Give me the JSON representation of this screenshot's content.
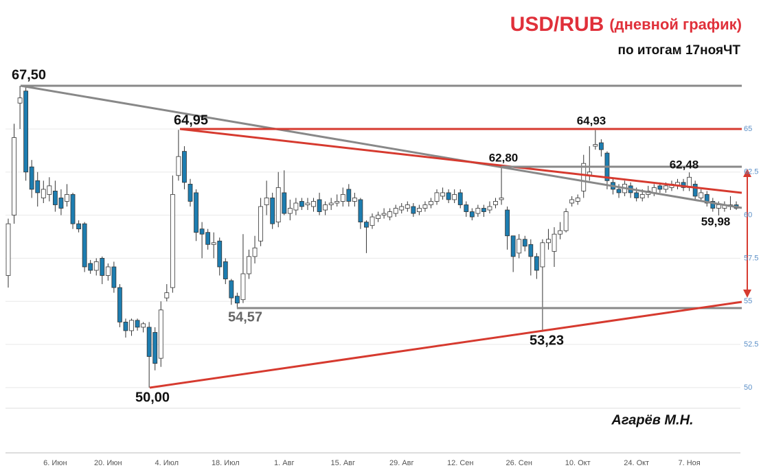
{
  "chart_data": {
    "type": "candlestick",
    "title": "USD/RUB",
    "title_suffix": "(дневной график)",
    "subtitle": "по итогам 17нояЧТ",
    "author": "Агарёв М.Н.",
    "categories": [
      null,
      null,
      null,
      null,
      null,
      null,
      null,
      null,
      "6. Июн",
      null,
      null,
      null,
      null,
      null,
      null,
      null,
      null,
      "20. Июн",
      null,
      null,
      null,
      null,
      null,
      null,
      null,
      null,
      null,
      "4. Июл",
      null,
      null,
      null,
      null,
      null,
      null,
      null,
      null,
      null,
      "18. Июл",
      null,
      null,
      null,
      null,
      null,
      null,
      null,
      null,
      null,
      "1. Авг",
      null,
      null,
      null,
      null,
      null,
      null,
      null,
      null,
      null,
      "15. Авг",
      null,
      null,
      null,
      null,
      null,
      null,
      null,
      null,
      null,
      "29. Авг",
      null,
      null,
      null,
      null,
      null,
      null,
      null,
      null,
      null,
      "12. Сен",
      null,
      null,
      null,
      null,
      null,
      null,
      null,
      null,
      null,
      "26. Сен",
      null,
      null,
      null,
      null,
      null,
      null,
      null,
      null,
      null,
      "10. Окт",
      null,
      null,
      null,
      null,
      null,
      null,
      null,
      null,
      null,
      "24. Окт",
      null,
      null,
      null,
      null,
      null,
      null,
      null,
      null,
      "7. Ноя",
      null,
      null,
      null,
      null,
      null,
      null,
      null,
      null
    ],
    "open": [
      56.5,
      60,
      66.5,
      67.2,
      62.8,
      62,
      61,
      61.2,
      61.4,
      61,
      60.8,
      61.2,
      59.5,
      59.5,
      57.2,
      56.8,
      57.5,
      56.5,
      57,
      55.8,
      53.8,
      53.3,
      53.9,
      53.5,
      53.5,
      53.2,
      51.7,
      55.2,
      55.8,
      62.3,
      63.7,
      61.8,
      61.3,
      59.2,
      59,
      58.3,
      58.5,
      57.3,
      56.2,
      55.3,
      55.1,
      56.6,
      57.6,
      58.5,
      60.6,
      61,
      59.6,
      61.3,
      60.1,
      60.3,
      60.8,
      60.6,
      60.5,
      60.9,
      60.3,
      60.6,
      60.7,
      60.8,
      61.5,
      60.8,
      60.9,
      59.6,
      59.4,
      59.8,
      60,
      59.9,
      60.1,
      60.3,
      60.4,
      60.5,
      60.2,
      60.4,
      60.6,
      60.8,
      61.1,
      61.3,
      60.9,
      61.3,
      60.6,
      60.2,
      60.1,
      60.4,
      60.3,
      60.6,
      60.9,
      60.3,
      58.8,
      57.8,
      58.6,
      58.3,
      57.6,
      57,
      58.4,
      57.9,
      58.9,
      59.1,
      60.7,
      60.8,
      61.4,
      62.3,
      64,
      64.2,
      63.6,
      61.9,
      61.5,
      61.3,
      61.7,
      61.3,
      61,
      61.2,
      61.3,
      61.7,
      61.5,
      61.6,
      61.7,
      61.9,
      61.6,
      61.8,
      61,
      61.2,
      60.8,
      60.4,
      60.4,
      60.5,
      60.6
    ],
    "high": [
      59.8,
      65.3,
      67.5,
      67.5,
      63.2,
      62.5,
      62,
      62.2,
      62,
      61.5,
      61.8,
      61.3,
      59.7,
      59.6,
      57.4,
      57.5,
      57.6,
      57.2,
      57.3,
      56,
      54,
      54,
      54,
      53.8,
      53.8,
      53.5,
      55,
      56,
      62.3,
      64.95,
      64,
      62.1,
      61.5,
      59.6,
      59.2,
      59,
      58.7,
      57.5,
      56.3,
      55.5,
      58.9,
      58,
      58.8,
      61,
      62,
      61.3,
      62.5,
      62.6,
      60.9,
      61,
      61,
      61,
      61,
      61.3,
      60.8,
      61,
      61.2,
      61.6,
      61.8,
      61.3,
      61,
      59.7,
      60.1,
      60.2,
      60.4,
      60.4,
      60.6,
      60.7,
      60.8,
      60.7,
      60.6,
      60.8,
      61,
      61.5,
      61.6,
      61.5,
      61.5,
      61.5,
      60.8,
      60.4,
      60.6,
      60.6,
      60.8,
      61,
      62.8,
      60.5,
      58.8,
      58.9,
      58.8,
      58.6,
      57.8,
      58.6,
      59.2,
      59.3,
      59.6,
      60.4,
      61.1,
      61.2,
      63.5,
      64,
      64.93,
      64.4,
      63.7,
      62.1,
      61.8,
      62,
      61.9,
      61.6,
      61.5,
      61.7,
      61.8,
      61.9,
      61.9,
      62,
      62.1,
      62.1,
      62.48,
      62,
      61.5,
      61.4,
      61,
      60.8,
      60.8,
      61.1,
      60.8
    ],
    "low": [
      55.8,
      59.5,
      65,
      62,
      61,
      60.5,
      60.7,
      60.8,
      60.2,
      60,
      60.5,
      59.2,
      59,
      56.7,
      56.6,
      56.5,
      56,
      56.2,
      55.5,
      53.5,
      52.9,
      53,
      53.3,
      53.2,
      50,
      51,
      51.2,
      55,
      55.5,
      62,
      61.5,
      60.5,
      58.5,
      57.5,
      58,
      57.5,
      56.5,
      56,
      54.8,
      54.57,
      54.9,
      56.3,
      57.2,
      58.2,
      60,
      59.2,
      59.3,
      60,
      59.7,
      60,
      60.3,
      60.3,
      60.2,
      60,
      60,
      60.3,
      60.5,
      60.5,
      60.5,
      60.5,
      59.2,
      57.8,
      59.2,
      59.6,
      59.8,
      59.7,
      59.9,
      60.1,
      60.2,
      59.9,
      60,
      60.2,
      60.4,
      60.6,
      60.9,
      60.7,
      60.7,
      60.4,
      59.9,
      59.7,
      59.9,
      59.9,
      60.1,
      60.4,
      60.6,
      58,
      56.7,
      57.5,
      57.9,
      56.5,
      56.3,
      53.23,
      58,
      57,
      58.6,
      59,
      60.5,
      60.6,
      61,
      62,
      63.8,
      63.4,
      61.5,
      61.2,
      61,
      61.1,
      61,
      60.8,
      60.8,
      61,
      61.1,
      61.3,
      61.3,
      61.4,
      61.5,
      61.4,
      61.4,
      60.9,
      60.8,
      60.5,
      60.2,
      59.98,
      60.2,
      60.3,
      60.3
    ],
    "close": [
      59.5,
      64.5,
      66.8,
      62.5,
      61.5,
      61.3,
      61.5,
      61.7,
      60.6,
      60.4,
      61.2,
      59.5,
      59.2,
      57,
      56.8,
      57.3,
      56.5,
      57,
      55.8,
      53.8,
      53.3,
      53.9,
      53.5,
      53.7,
      51.8,
      51.4,
      54.5,
      55.5,
      61.2,
      63.4,
      61.9,
      60.8,
      59,
      58.9,
      58.3,
      58.4,
      57,
      56.3,
      55.2,
      54.9,
      56.6,
      57.6,
      58.1,
      60.5,
      61,
      59.5,
      61.6,
      60.1,
      60.4,
      60.7,
      60.5,
      60.7,
      60.8,
      60.2,
      60.6,
      60.7,
      60.8,
      61.2,
      60.8,
      61,
      59.6,
      59.3,
      59.9,
      60,
      60.1,
      60.2,
      60.4,
      60.5,
      60.6,
      60.1,
      60.4,
      60.6,
      60.8,
      61.3,
      61.3,
      60.9,
      61.2,
      60.6,
      60.2,
      59.9,
      60.4,
      60.2,
      60.5,
      60.8,
      61,
      58.8,
      57.6,
      58.6,
      58.2,
      57.6,
      56.8,
      58.4,
      58.6,
      58.9,
      59.1,
      60.2,
      60.9,
      61,
      63,
      62.5,
      64.1,
      63.8,
      62,
      61.5,
      61.3,
      61.8,
      61.3,
      61,
      61.2,
      61.4,
      61.6,
      61.5,
      61.7,
      61.8,
      61.9,
      61.6,
      62.2,
      61.1,
      61.3,
      60.7,
      60.4,
      60.6,
      60.6,
      60.6,
      60.4
    ],
    "up_color": "#ffffff",
    "down_color": "#1d7db0",
    "ylim": [
      48.8,
      72.4
    ],
    "yticks": [
      50,
      52.5,
      55,
      57.5,
      60,
      62.5,
      65
    ],
    "grid": true,
    "annotations": [
      "67,50",
      "64,95",
      "64,93",
      "62,80",
      "62,48",
      "59,98",
      "54,57",
      "50,00",
      "53,23"
    ]
  }
}
